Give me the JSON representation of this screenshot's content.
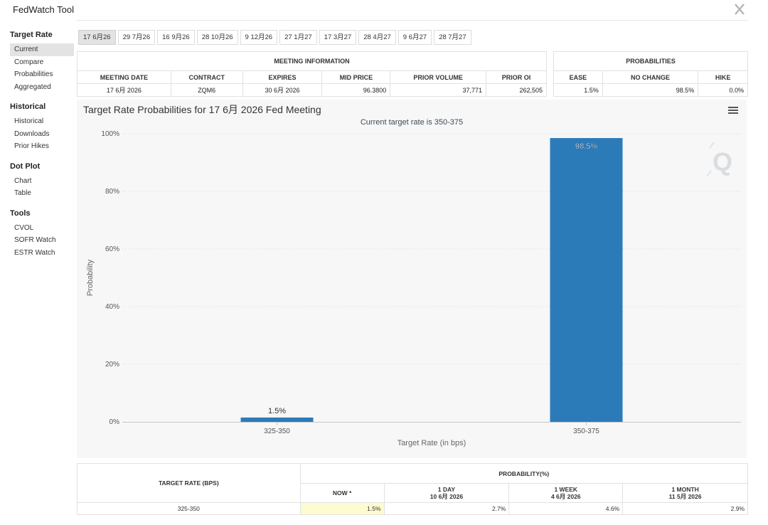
{
  "app": {
    "title": "FedWatch Tool"
  },
  "icons": {
    "close": "x-close-icon",
    "menu": "hamburger-menu-icon",
    "watermark": "q-logo"
  },
  "sidebar": {
    "sections": [
      {
        "heading": "Target Rate",
        "items": [
          "Current",
          "Compare",
          "Probabilities",
          "Aggregated"
        ],
        "active": 0
      },
      {
        "heading": "Historical",
        "items": [
          "Historical",
          "Downloads",
          "Prior Hikes"
        ]
      },
      {
        "heading": "Dot Plot",
        "items": [
          "Chart",
          "Table"
        ]
      },
      {
        "heading": "Tools",
        "items": [
          "CVOL",
          "SOFR Watch",
          "ESTR Watch"
        ]
      }
    ]
  },
  "date_tabs": {
    "items": [
      "17 6月26",
      "29 7月26",
      "16 9月26",
      "28 10月26",
      "9 12月26",
      "27 1月27",
      "17 3月27",
      "28 4月27",
      "9 6月27",
      "28 7月27"
    ],
    "active": 0
  },
  "meeting_info": {
    "header": "MEETING INFORMATION",
    "columns": [
      "MEETING DATE",
      "CONTRACT",
      "EXPIRES",
      "MID PRICE",
      "PRIOR VOLUME",
      "PRIOR OI"
    ],
    "row": [
      "17 6月 2026",
      "ZQM6",
      "30 6月 2026",
      "96.3800",
      "37,771",
      "262,505"
    ]
  },
  "probabilities": {
    "header": "PROBABILITIES",
    "columns": [
      "EASE",
      "NO CHANGE",
      "HIKE"
    ],
    "row": [
      "1.5%",
      "98.5%",
      "0.0%"
    ]
  },
  "chart": {
    "title": "Target Rate Probabilities for 17 6月 2026 Fed Meeting",
    "subtitle": "Current target rate is 350-375"
  },
  "chart_data": {
    "type": "bar",
    "title": "Target Rate Probabilities for 17 6月 2026 Fed Meeting",
    "subtitle": "Current target rate is 350-375",
    "categories": [
      "325-350",
      "350-375"
    ],
    "values": [
      1.5,
      98.5
    ],
    "data_labels": [
      "1.5%",
      "98.5%"
    ],
    "xlabel": "Target Rate (in bps)",
    "ylabel": "Probability",
    "ylim": [
      0,
      100
    ],
    "yticks": [
      "0%",
      "20%",
      "40%",
      "60%",
      "80%",
      "100%"
    ],
    "grid": true,
    "bar_color": "#2b7bb9",
    "legend": "none"
  },
  "bottom_table": {
    "col_target": "TARGET RATE (BPS)",
    "col_group": "PROBABILITY(%)",
    "periods": [
      {
        "line1": "NOW *",
        "line2": ""
      },
      {
        "line1": "1 DAY",
        "line2": "10 6月 2026"
      },
      {
        "line1": "1 WEEK",
        "line2": "4 6月 2026"
      },
      {
        "line1": "1 MONTH",
        "line2": "11 5月 2026"
      }
    ],
    "rows": [
      {
        "rate": "325-350",
        "values": [
          "1.5%",
          "2.7%",
          "4.6%",
          "2.9%"
        ]
      }
    ]
  },
  "colors": {
    "accent": "#2b7bb9",
    "now_highlight": "#fdfbd0",
    "active_tab": "#e3e3e3"
  }
}
